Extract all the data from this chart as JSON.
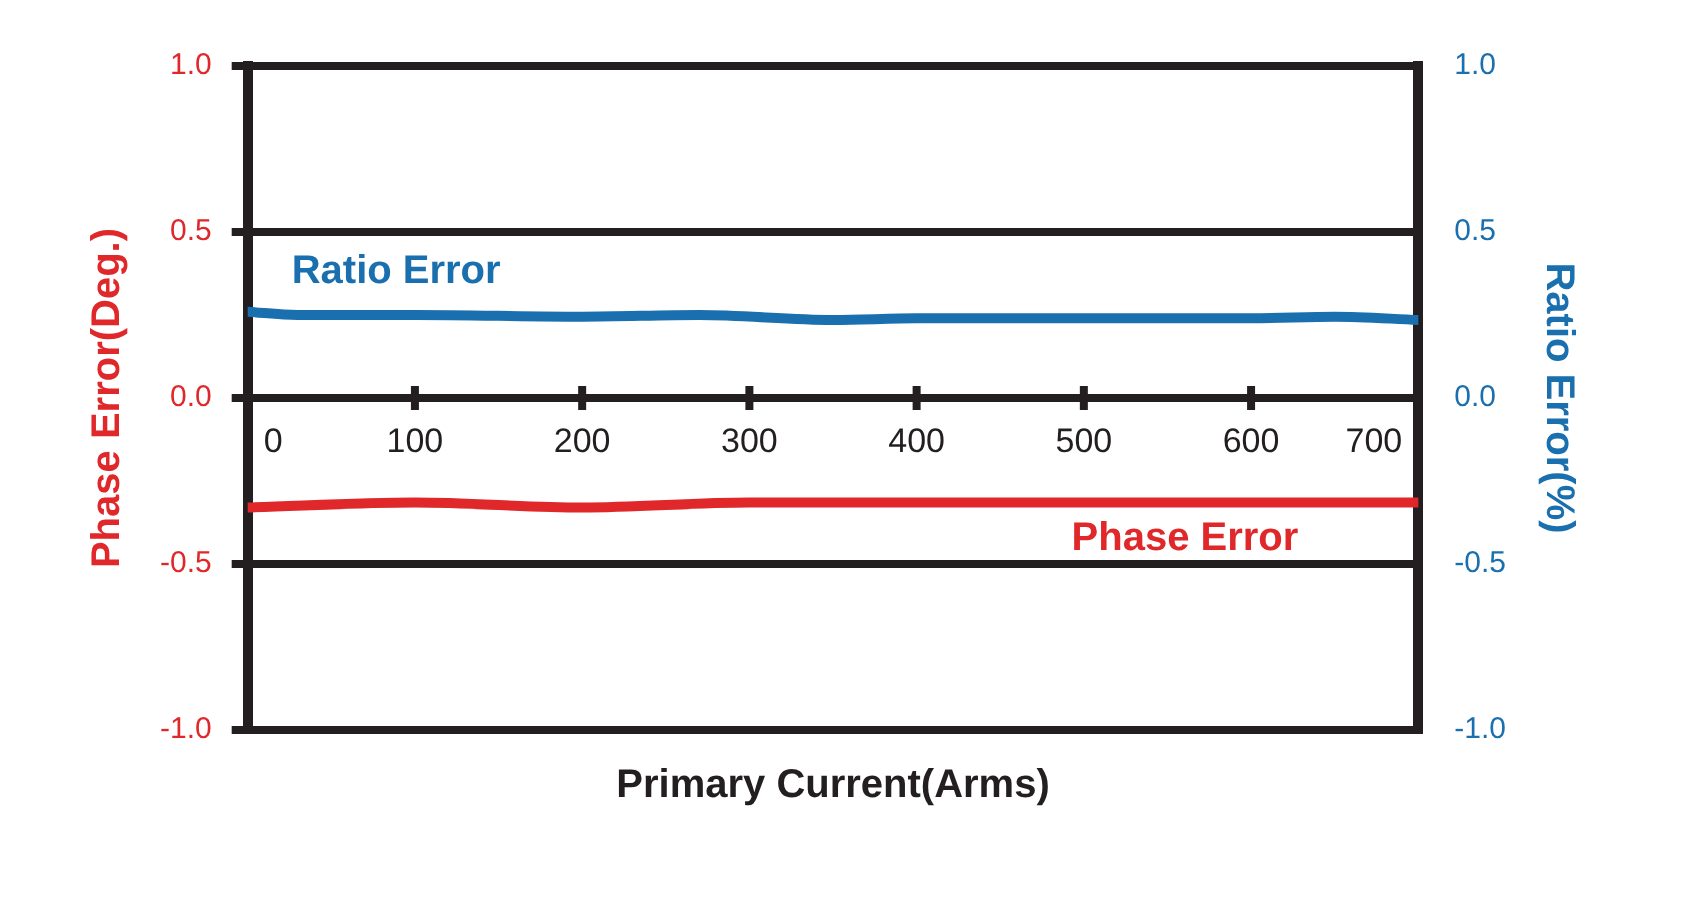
{
  "chart_data": {
    "type": "line",
    "xlabel": "Primary Current(Arms)",
    "ylabel": "Phase Error(Deg.)",
    "y2label": "Ratio Error(%)",
    "xlim": [
      0,
      700
    ],
    "xticks": [
      0,
      100,
      200,
      300,
      400,
      500,
      600,
      700
    ],
    "ylim": [
      -1,
      1
    ],
    "yticks": [
      {
        "value": -1,
        "label": "-1.0"
      },
      -0.5,
      {
        "value": 0,
        "label": "0.0"
      },
      0.5,
      {
        "value": 1,
        "label": "1.0"
      }
    ],
    "y2lim": [
      -1,
      1
    ],
    "y2ticks": [
      {
        "value": -1,
        "label": "-1.0"
      },
      -0.5,
      {
        "value": 0,
        "label": "0.0"
      },
      0.5,
      {
        "value": 1,
        "label": "1.0"
      }
    ],
    "grid": "y",
    "legend": false,
    "marker": "none",
    "line_style": "solid",
    "series": [
      {
        "name": "Ratio Error",
        "color": "#1a6faf",
        "axis": "y2",
        "x": [
          0,
          30,
          100,
          200,
          270,
          350,
          400,
          500,
          600,
          650,
          700
        ],
        "values": [
          0.26,
          0.25,
          0.25,
          0.245,
          0.25,
          0.235,
          0.24,
          0.24,
          0.24,
          0.245,
          0.235
        ]
      },
      {
        "name": "Phase Error",
        "color": "#e0282b",
        "axis": "y",
        "x": [
          0,
          100,
          200,
          300,
          400,
          500,
          600,
          700
        ],
        "values": [
          -0.33,
          -0.315,
          -0.33,
          -0.315,
          -0.315,
          -0.315,
          -0.315,
          -0.315
        ]
      }
    ]
  }
}
